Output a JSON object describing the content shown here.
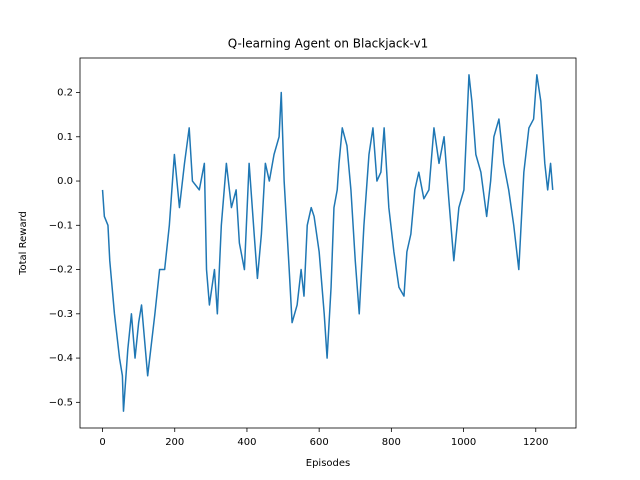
{
  "chart_data": {
    "type": "line",
    "title": "Q-learning Agent on Blackjack-v1",
    "x_label": "Episodes",
    "y_label": "Total Reward",
    "x": [
      0,
      5,
      15,
      20,
      33,
      47,
      55,
      58,
      70,
      80,
      90,
      100,
      108,
      125,
      145,
      158,
      172,
      185,
      199,
      213,
      227,
      240,
      249,
      268,
      282,
      288,
      296,
      310,
      318,
      329,
      343,
      357,
      370,
      379,
      393,
      406,
      420,
      429,
      440,
      451,
      462,
      475,
      489,
      495,
      503,
      517,
      525,
      539,
      550,
      558,
      567,
      578,
      586,
      600,
      614,
      622,
      633,
      641,
      650,
      655,
      664,
      677,
      688,
      700,
      711,
      724,
      738,
      749,
      760,
      771,
      780,
      793,
      807,
      821,
      835,
      843,
      854,
      865,
      876,
      890,
      904,
      918,
      932,
      946,
      959,
      973,
      987,
      1001,
      1015,
      1023,
      1034,
      1048,
      1064,
      1075,
      1084,
      1098,
      1111,
      1125,
      1139,
      1153,
      1167,
      1181,
      1194,
      1203,
      1214,
      1225,
      1233,
      1241,
      1247
    ],
    "series": [
      {
        "name": "Total Reward",
        "color": "#1f77b4",
        "values": [
          -0.02,
          -0.08,
          -0.1,
          -0.18,
          -0.3,
          -0.4,
          -0.44,
          -0.52,
          -0.38,
          -0.3,
          -0.4,
          -0.32,
          -0.28,
          -0.44,
          -0.3,
          -0.2,
          -0.2,
          -0.1,
          0.06,
          -0.06,
          0.04,
          0.12,
          0.0,
          -0.02,
          0.04,
          -0.2,
          -0.28,
          -0.2,
          -0.3,
          -0.1,
          0.04,
          -0.06,
          -0.02,
          -0.14,
          -0.2,
          0.04,
          -0.12,
          -0.22,
          -0.12,
          0.04,
          0.0,
          0.06,
          0.1,
          0.2,
          0.0,
          -0.2,
          -0.32,
          -0.28,
          -0.2,
          -0.26,
          -0.1,
          -0.06,
          -0.08,
          -0.16,
          -0.3,
          -0.4,
          -0.24,
          -0.06,
          -0.02,
          0.04,
          0.12,
          0.08,
          -0.02,
          -0.18,
          -0.3,
          -0.1,
          0.06,
          0.12,
          0.0,
          0.02,
          0.12,
          -0.06,
          -0.16,
          -0.24,
          -0.26,
          -0.16,
          -0.12,
          -0.02,
          0.02,
          -0.04,
          -0.02,
          0.12,
          0.04,
          0.1,
          -0.04,
          -0.18,
          -0.06,
          -0.02,
          0.24,
          0.18,
          0.06,
          0.02,
          -0.08,
          0.0,
          0.1,
          0.14,
          0.04,
          -0.02,
          -0.1,
          -0.2,
          0.02,
          0.12,
          0.14,
          0.24,
          0.18,
          0.04,
          -0.02,
          0.04,
          -0.02
        ]
      }
    ],
    "xlim": [
      -62.45,
      1311.45
    ],
    "ylim": [
      -0.558,
      0.278
    ],
    "xticks": [
      0,
      200,
      400,
      600,
      800,
      1000,
      1200
    ],
    "yticks": [
      {
        "value": -0.5,
        "label": "−0.5"
      },
      {
        "value": -0.4,
        "label": "−0.4"
      },
      {
        "value": -0.3,
        "label": "−0.3"
      },
      {
        "value": -0.2,
        "label": "−0.2"
      },
      {
        "value": -0.1,
        "label": "−0.1"
      },
      {
        "value": 0.0,
        "label": "0.0"
      },
      0.1,
      0.2
    ],
    "grid": false
  }
}
